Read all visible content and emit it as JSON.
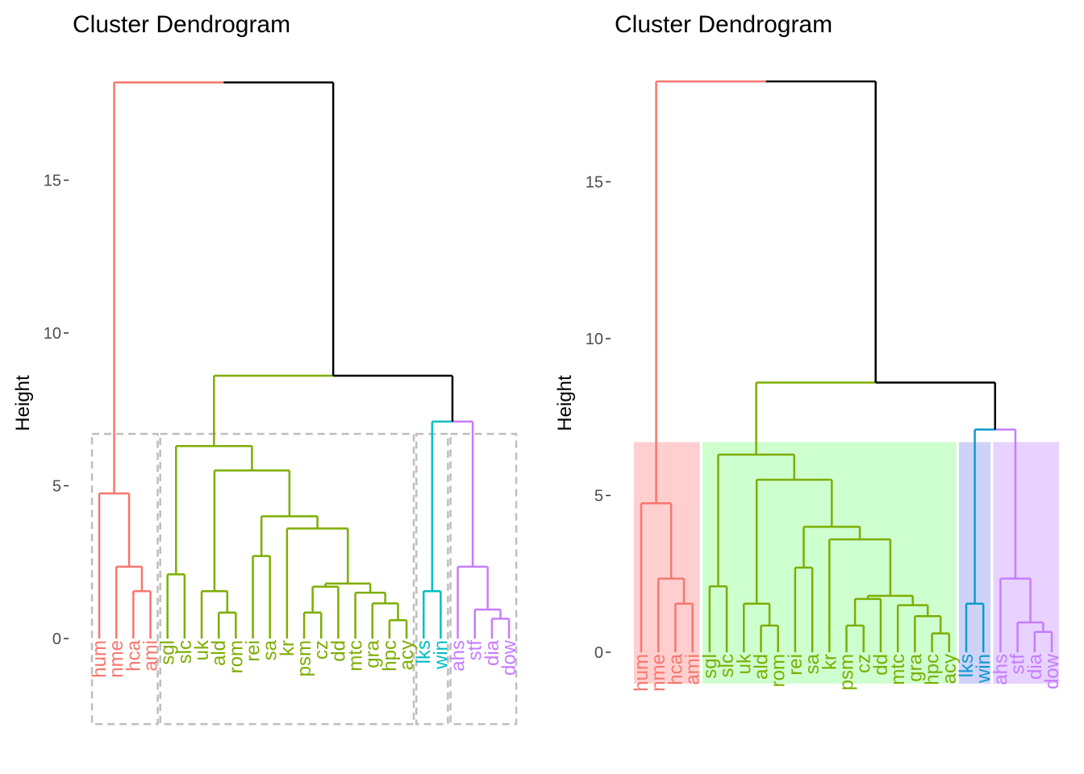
{
  "chart_data": [
    {
      "type": "dendrogram",
      "title": "Cluster Dendrogram",
      "ylabel": "Height",
      "xlabel": "",
      "ylim": [
        -2.8,
        18.5
      ],
      "yticks": [
        0,
        5,
        10,
        15
      ],
      "grid": false,
      "cluster_annotation": "dashed-rectangles",
      "leaves": [
        "hum",
        "nme",
        "hca",
        "ami",
        "sgl",
        "slc",
        "uk",
        "ald",
        "rom",
        "rei",
        "sa",
        "kr",
        "psm",
        "cz",
        "dd",
        "mtc",
        "gra",
        "hpc",
        "acy",
        "lks",
        "win",
        "ahs",
        "stf",
        "dia",
        "dow"
      ],
      "clusters": [
        {
          "leaves": [
            "hum",
            "nme",
            "hca",
            "ami"
          ],
          "color": "#F8766D"
        },
        {
          "leaves": [
            "sgl",
            "slc",
            "uk",
            "ald",
            "rom",
            "rei",
            "sa",
            "kr",
            "psm",
            "cz",
            "dd",
            "mtc",
            "gra",
            "hpc",
            "acy"
          ],
          "color": "#7CAE00"
        },
        {
          "leaves": [
            "lks",
            "win"
          ],
          "color": "#00BFC4"
        },
        {
          "leaves": [
            "ahs",
            "stf",
            "dia",
            "dow"
          ],
          "color": "#C77CFF"
        }
      ],
      "merges": [
        {
          "id": "m1",
          "a": "hca",
          "b": "ami",
          "height": 1.55
        },
        {
          "id": "m2",
          "a": "nme",
          "b": "m1",
          "height": 2.35
        },
        {
          "id": "m3",
          "a": "hum",
          "b": "m2",
          "height": 4.75
        },
        {
          "id": "m4",
          "a": "sgl",
          "b": "slc",
          "height": 2.1
        },
        {
          "id": "m5",
          "a": "ald",
          "b": "rom",
          "height": 0.85
        },
        {
          "id": "m6",
          "a": "uk",
          "b": "m5",
          "height": 1.55
        },
        {
          "id": "m7",
          "a": "rei",
          "b": "sa",
          "height": 2.7
        },
        {
          "id": "m8",
          "a": "psm",
          "b": "cz",
          "height": 0.85
        },
        {
          "id": "m9",
          "a": "dd",
          "b": "m8",
          "height": 1.7
        },
        {
          "id": "m10",
          "a": "hpc",
          "b": "acy",
          "height": 0.6
        },
        {
          "id": "m11",
          "a": "gra",
          "b": "m10",
          "height": 1.15
        },
        {
          "id": "m12",
          "a": "mtc",
          "b": "m11",
          "height": 1.5
        },
        {
          "id": "m13",
          "a": "m12",
          "b": "m9",
          "height": 1.8
        },
        {
          "id": "m14",
          "a": "kr",
          "b": "m13",
          "height": 3.6
        },
        {
          "id": "m15",
          "a": "m7",
          "b": "m14",
          "height": 4.0
        },
        {
          "id": "m16",
          "a": "m6",
          "b": "m15",
          "height": 5.5
        },
        {
          "id": "m17",
          "a": "m4",
          "b": "m16",
          "height": 6.3
        },
        {
          "id": "m18",
          "a": "lks",
          "b": "win",
          "height": 1.55
        },
        {
          "id": "m19",
          "a": "dia",
          "b": "dow",
          "height": 0.65
        },
        {
          "id": "m20",
          "a": "stf",
          "b": "m19",
          "height": 0.95
        },
        {
          "id": "m21",
          "a": "ahs",
          "b": "m20",
          "height": 2.35
        },
        {
          "id": "m22",
          "a": "m18",
          "b": "m21",
          "height": 7.1
        },
        {
          "id": "m23",
          "a": "m17",
          "b": "m22",
          "height": 8.6
        },
        {
          "id": "m24",
          "a": "m3",
          "b": "m23",
          "height": 18.2
        }
      ]
    },
    {
      "type": "dendrogram",
      "title": "Cluster Dendrogram",
      "ylabel": "Height",
      "xlabel": "",
      "ylim": [
        -2.8,
        18.5
      ],
      "yticks": [
        0,
        5,
        10,
        15
      ],
      "grid": false,
      "cluster_annotation": "filled-rectangles",
      "leaves": [
        "hum",
        "nme",
        "hca",
        "ami",
        "sgl",
        "slc",
        "uk",
        "ald",
        "rom",
        "rei",
        "sa",
        "kr",
        "psm",
        "cz",
        "dd",
        "mtc",
        "gra",
        "hpc",
        "acy",
        "lks",
        "win",
        "ahs",
        "stf",
        "dia",
        "dow"
      ],
      "clusters": [
        {
          "leaves": [
            "hum",
            "nme",
            "hca",
            "ami"
          ],
          "color": "#F8766D",
          "fill": "#FFCFCF"
        },
        {
          "leaves": [
            "sgl",
            "slc",
            "uk",
            "ald",
            "rom",
            "rei",
            "sa",
            "kr",
            "psm",
            "cz",
            "dd",
            "mtc",
            "gra",
            "hpc",
            "acy"
          ],
          "color": "#7CAE00",
          "fill": "#CEFFCE"
        },
        {
          "leaves": [
            "lks",
            "win"
          ],
          "color": "#0E9ACD",
          "fill": "#CDD3F8"
        },
        {
          "leaves": [
            "ahs",
            "stf",
            "dia",
            "dow"
          ],
          "color": "#C77CFF",
          "fill": "#E8D2FF"
        }
      ],
      "merges": [
        {
          "id": "m1",
          "a": "hca",
          "b": "ami",
          "height": 1.55
        },
        {
          "id": "m2",
          "a": "nme",
          "b": "m1",
          "height": 2.35
        },
        {
          "id": "m3",
          "a": "hum",
          "b": "m2",
          "height": 4.75
        },
        {
          "id": "m4",
          "a": "sgl",
          "b": "slc",
          "height": 2.1
        },
        {
          "id": "m5",
          "a": "ald",
          "b": "rom",
          "height": 0.85
        },
        {
          "id": "m6",
          "a": "uk",
          "b": "m5",
          "height": 1.55
        },
        {
          "id": "m7",
          "a": "rei",
          "b": "sa",
          "height": 2.7
        },
        {
          "id": "m8",
          "a": "psm",
          "b": "cz",
          "height": 0.85
        },
        {
          "id": "m9",
          "a": "dd",
          "b": "m8",
          "height": 1.7
        },
        {
          "id": "m10",
          "a": "hpc",
          "b": "acy",
          "height": 0.6
        },
        {
          "id": "m11",
          "a": "gra",
          "b": "m10",
          "height": 1.15
        },
        {
          "id": "m12",
          "a": "mtc",
          "b": "m11",
          "height": 1.5
        },
        {
          "id": "m13",
          "a": "m12",
          "b": "m9",
          "height": 1.8
        },
        {
          "id": "m14",
          "a": "kr",
          "b": "m13",
          "height": 3.6
        },
        {
          "id": "m15",
          "a": "m7",
          "b": "m14",
          "height": 4.0
        },
        {
          "id": "m16",
          "a": "m6",
          "b": "m15",
          "height": 5.5
        },
        {
          "id": "m17",
          "a": "m4",
          "b": "m16",
          "height": 6.3
        },
        {
          "id": "m18",
          "a": "lks",
          "b": "win",
          "height": 1.55
        },
        {
          "id": "m19",
          "a": "dia",
          "b": "dow",
          "height": 0.65
        },
        {
          "id": "m20",
          "a": "stf",
          "b": "m19",
          "height": 0.95
        },
        {
          "id": "m21",
          "a": "ahs",
          "b": "m20",
          "height": 2.35
        },
        {
          "id": "m22",
          "a": "m18",
          "b": "m21",
          "height": 7.1
        },
        {
          "id": "m23",
          "a": "m17",
          "b": "m22",
          "height": 8.6
        },
        {
          "id": "m24",
          "a": "m3",
          "b": "m23",
          "height": 18.2
        }
      ]
    }
  ]
}
